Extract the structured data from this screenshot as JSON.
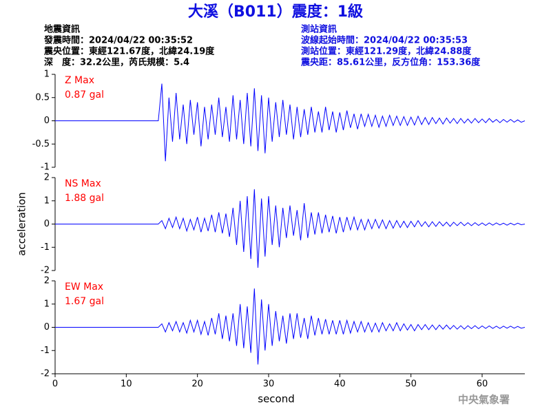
{
  "header": {
    "title": "大溪（B011）震度：1級",
    "title_color": "#1010e0",
    "left_lines": [
      "地震資訊",
      "發震時間：2024/04/22 00:35:52",
      "震央位置：東經121.67度，北緯24.19度",
      "深　度：32.2公里，芮氏規模：5.4"
    ],
    "right_lines": [
      "測站資訊",
      "波線起始時間：2024/04/22 00:35:53",
      "測站位置：東經121.29度，北緯24.88度",
      "震央距：85.61公里，反方位角：153.36度"
    ],
    "right_color": "#1010e0"
  },
  "footer": "中央氣象署",
  "chart_data": [
    {
      "type": "line",
      "label": "Z Max",
      "annotation": "0.87 gal",
      "annotation_color": "#ff0000",
      "color": "#0000ff",
      "xlim": [
        0,
        66
      ],
      "ylim": [
        -1,
        1
      ],
      "yticks": [
        -1,
        -0.5,
        0,
        0.5,
        1
      ],
      "x": [
        0,
        14.5,
        15,
        15.5,
        16,
        16.5,
        17,
        17.5,
        18,
        18.5,
        19,
        19.5,
        20,
        20.5,
        21,
        21.5,
        22,
        22.5,
        23,
        23.5,
        24,
        24.5,
        25,
        25.5,
        26,
        26.5,
        27,
        27.5,
        28,
        28.5,
        29,
        29.5,
        30,
        30.5,
        31,
        31.5,
        32,
        32.5,
        33,
        33.5,
        34,
        34.5,
        35,
        35.5,
        36,
        36.5,
        37,
        37.5,
        38,
        38.5,
        39,
        39.5,
        40,
        40.5,
        41,
        41.5,
        42,
        42.5,
        43,
        43.5,
        44,
        44.5,
        45,
        45.5,
        46,
        46.5,
        47,
        47.5,
        48,
        48.5,
        49,
        49.5,
        50,
        50.5,
        51,
        51.5,
        52,
        52.5,
        53,
        53.5,
        54,
        54.5,
        55,
        55.5,
        56,
        56.5,
        57,
        57.5,
        58,
        58.5,
        59,
        59.5,
        60,
        60.5,
        61,
        61.5,
        62,
        62.5,
        63,
        63.5,
        64,
        64.5,
        65,
        65.5,
        66
      ],
      "values": [
        0,
        0,
        0.8,
        -0.87,
        0.5,
        -0.45,
        0.6,
        -0.4,
        0.35,
        -0.5,
        0.45,
        -0.3,
        0.4,
        -0.55,
        0.3,
        -0.4,
        0.35,
        -0.3,
        0.5,
        -0.35,
        0.3,
        -0.45,
        0.55,
        -0.4,
        0.45,
        -0.5,
        0.6,
        -0.55,
        0.7,
        -0.65,
        0.55,
        -0.7,
        0.5,
        -0.45,
        0.4,
        -0.35,
        0.45,
        -0.3,
        0.35,
        -0.4,
        0.3,
        -0.35,
        0.25,
        -0.3,
        0.3,
        -0.25,
        0.2,
        -0.25,
        0.3,
        -0.2,
        0.2,
        -0.25,
        0.18,
        -0.2,
        0.22,
        -0.15,
        0.15,
        -0.18,
        0.15,
        -0.12,
        0.14,
        -0.12,
        0.12,
        -0.14,
        0.1,
        -0.12,
        0.12,
        -0.1,
        0.1,
        -0.1,
        0.09,
        -0.1,
        0.08,
        -0.09,
        0.1,
        -0.08,
        0.07,
        -0.08,
        0.07,
        -0.06,
        0.06,
        -0.07,
        0.06,
        -0.05,
        0.05,
        -0.06,
        0.05,
        -0.05,
        0.04,
        -0.05,
        0.05,
        -0.04,
        0.04,
        -0.04,
        0.05,
        -0.03,
        0.03,
        -0.04,
        0.03,
        -0.03,
        0.03,
        -0.03,
        0.02,
        -0.03,
        0
      ]
    },
    {
      "type": "line",
      "label": "NS Max",
      "annotation": "1.88 gal",
      "annotation_color": "#ff0000",
      "color": "#0000ff",
      "ylabel": "acceleration",
      "xlim": [
        0,
        66
      ],
      "ylim": [
        -2,
        2
      ],
      "yticks": [
        -2,
        -1,
        0,
        1,
        2
      ],
      "x": [
        0,
        14.5,
        15,
        15.5,
        16,
        16.5,
        17,
        17.5,
        18,
        18.5,
        19,
        19.5,
        20,
        20.5,
        21,
        21.5,
        22,
        22.5,
        23,
        23.5,
        24,
        24.5,
        25,
        25.5,
        26,
        26.5,
        27,
        27.5,
        28,
        28.5,
        29,
        29.5,
        30,
        30.5,
        31,
        31.5,
        32,
        32.5,
        33,
        33.5,
        34,
        34.5,
        35,
        35.5,
        36,
        36.5,
        37,
        37.5,
        38,
        38.5,
        39,
        39.5,
        40,
        40.5,
        41,
        41.5,
        42,
        42.5,
        43,
        43.5,
        44,
        44.5,
        45,
        45.5,
        46,
        46.5,
        47,
        47.5,
        48,
        48.5,
        49,
        49.5,
        50,
        50.5,
        51,
        51.5,
        52,
        52.5,
        53,
        53.5,
        54,
        54.5,
        55,
        55.5,
        56,
        56.5,
        57,
        57.5,
        58,
        58.5,
        59,
        59.5,
        60,
        60.5,
        61,
        61.5,
        62,
        62.5,
        63,
        63.5,
        64,
        64.5,
        65,
        65.5,
        66
      ],
      "values": [
        0,
        0,
        0.15,
        -0.2,
        0.25,
        -0.15,
        0.3,
        -0.2,
        0.25,
        -0.3,
        0.2,
        -0.25,
        0.3,
        -0.35,
        0.25,
        -0.3,
        0.4,
        -0.35,
        0.5,
        -0.4,
        0.45,
        -0.55,
        0.7,
        -0.9,
        1.0,
        -1.2,
        1.2,
        -1.5,
        1.5,
        -1.88,
        1.1,
        -1.4,
        1.2,
        -0.9,
        0.8,
        -1.0,
        0.7,
        -0.6,
        0.8,
        -0.5,
        0.6,
        -0.7,
        0.9,
        -0.6,
        0.5,
        -0.45,
        0.5,
        -0.4,
        0.4,
        -0.35,
        0.35,
        -0.4,
        0.3,
        -0.35,
        0.3,
        -0.25,
        0.3,
        -0.25,
        0.2,
        -0.25,
        0.2,
        -0.2,
        0.2,
        -0.18,
        0.18,
        -0.2,
        0.15,
        -0.18,
        0.15,
        -0.15,
        0.12,
        -0.15,
        0.12,
        -0.12,
        0.15,
        -0.1,
        0.1,
        -0.12,
        0.1,
        -0.1,
        0.1,
        -0.08,
        0.08,
        -0.1,
        0.08,
        -0.07,
        0.08,
        -0.07,
        0.06,
        -0.07,
        0.06,
        -0.06,
        0.05,
        -0.06,
        0.05,
        -0.05,
        0.05,
        -0.04,
        0.04,
        -0.05,
        0.04,
        -0.04,
        0.04,
        -0.03,
        0
      ]
    },
    {
      "type": "line",
      "label": "EW Max",
      "annotation": "1.67 gal",
      "annotation_color": "#ff0000",
      "color": "#0000ff",
      "xlabel": "second",
      "xlim": [
        0,
        66
      ],
      "ylim": [
        -2,
        2
      ],
      "yticks": [
        -2,
        -1,
        0,
        1,
        2
      ],
      "xticks": [
        0,
        10,
        20,
        30,
        40,
        50,
        60
      ],
      "x": [
        0,
        14.5,
        15,
        15.5,
        16,
        16.5,
        17,
        17.5,
        18,
        18.5,
        19,
        19.5,
        20,
        20.5,
        21,
        21.5,
        22,
        22.5,
        23,
        23.5,
        24,
        24.5,
        25,
        25.5,
        26,
        26.5,
        27,
        27.5,
        28,
        28.5,
        29,
        29.5,
        30,
        30.5,
        31,
        31.5,
        32,
        32.5,
        33,
        33.5,
        34,
        34.5,
        35,
        35.5,
        36,
        36.5,
        37,
        37.5,
        38,
        38.5,
        39,
        39.5,
        40,
        40.5,
        41,
        41.5,
        42,
        42.5,
        43,
        43.5,
        44,
        44.5,
        45,
        45.5,
        46,
        46.5,
        47,
        47.5,
        48,
        48.5,
        49,
        49.5,
        50,
        50.5,
        51,
        51.5,
        52,
        52.5,
        53,
        53.5,
        54,
        54.5,
        55,
        55.5,
        56,
        56.5,
        57,
        57.5,
        58,
        58.5,
        59,
        59.5,
        60,
        60.5,
        61,
        61.5,
        62,
        62.5,
        63,
        63.5,
        64,
        64.5,
        65,
        65.5,
        66
      ],
      "values": [
        0,
        0,
        0.15,
        -0.2,
        0.2,
        -0.15,
        0.25,
        -0.2,
        0.2,
        -0.25,
        0.3,
        -0.2,
        0.3,
        -0.3,
        0.25,
        -0.35,
        0.4,
        -0.3,
        0.6,
        -0.5,
        0.5,
        -0.6,
        0.6,
        -0.8,
        1.0,
        -0.9,
        0.9,
        -1.1,
        1.67,
        -1.6,
        1.2,
        -1.0,
        1.0,
        -0.8,
        0.7,
        -0.6,
        0.5,
        -0.7,
        0.6,
        -0.5,
        0.6,
        -0.45,
        0.4,
        -0.5,
        0.5,
        -0.35,
        0.4,
        -0.3,
        0.35,
        -0.3,
        0.3,
        -0.3,
        0.3,
        -0.3,
        0.3,
        -0.25,
        0.25,
        -0.2,
        0.25,
        -0.2,
        0.2,
        -0.2,
        0.18,
        -0.2,
        0.2,
        -0.15,
        0.15,
        -0.15,
        0.2,
        -0.15,
        0.15,
        -0.12,
        0.12,
        -0.15,
        0.12,
        -0.1,
        0.12,
        -0.1,
        0.1,
        -0.1,
        0.1,
        -0.08,
        0.1,
        -0.08,
        0.08,
        -0.08,
        0.07,
        -0.08,
        0.07,
        -0.06,
        0.07,
        -0.06,
        0.06,
        -0.05,
        0.06,
        -0.05,
        0.05,
        -0.05,
        0.05,
        -0.04,
        0.05,
        -0.04,
        0.04,
        -0.04,
        0
      ]
    }
  ]
}
